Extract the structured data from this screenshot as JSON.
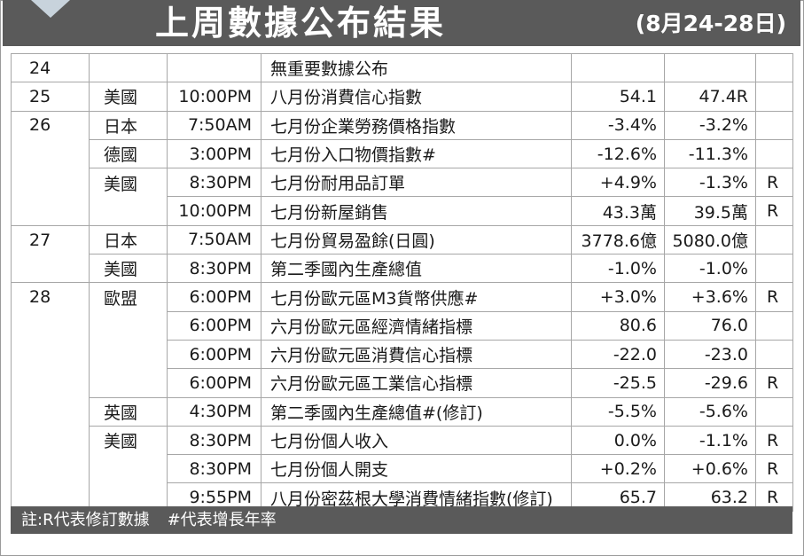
{
  "header": {
    "title": "上周數據公布結果",
    "date_range": "(8月24-28日)"
  },
  "table": {
    "rows": [
      {
        "day": "24",
        "country": "",
        "time": "",
        "item": "無重要數據公布",
        "actual": "",
        "previous": "",
        "revised": ""
      },
      {
        "day": "25",
        "country": "美國",
        "time": "10:00PM",
        "item": "八月份消費信心指數",
        "actual": "54.1",
        "previous": "47.4R",
        "revised": ""
      },
      {
        "day": "26",
        "country": "日本",
        "time": "7:50AM",
        "item": "七月份企業勞務價格指數",
        "actual": "-3.4%",
        "previous": "-3.2%",
        "revised": ""
      },
      {
        "day": "",
        "country": "德國",
        "time": "3:00PM",
        "item": "七月份入口物價指數#",
        "actual": "-12.6%",
        "previous": "-11.3%",
        "revised": ""
      },
      {
        "day": "",
        "country": "美國",
        "time": "8:30PM",
        "item": "七月份耐用品訂單",
        "actual": "+4.9%",
        "previous": "-1.3%",
        "revised": "R"
      },
      {
        "day": "",
        "country": "",
        "time": "10:00PM",
        "item": "七月份新屋銷售",
        "actual": "43.3萬",
        "previous": "39.5萬",
        "revised": "R"
      },
      {
        "day": "27",
        "country": "日本",
        "time": "7:50AM",
        "item": "七月份貿易盈餘(日圓)",
        "actual": "3778.6億",
        "previous": "5080.0億",
        "revised": ""
      },
      {
        "day": "",
        "country": "美國",
        "time": "8:30PM",
        "item": "第二季國內生產總值",
        "actual": "-1.0%",
        "previous": "-1.0%",
        "revised": ""
      },
      {
        "day": "28",
        "country": "歐盟",
        "time": "6:00PM",
        "item": "七月份歐元區M3貨幣供應#",
        "actual": "+3.0%",
        "previous": "+3.6%",
        "revised": "R"
      },
      {
        "day": "",
        "country": "",
        "time": "6:00PM",
        "item": "六月份歐元區經濟情緒指標",
        "actual": "80.6",
        "previous": "76.0",
        "revised": ""
      },
      {
        "day": "",
        "country": "",
        "time": "6:00PM",
        "item": "六月份歐元區消費信心指標",
        "actual": "-22.0",
        "previous": "-23.0",
        "revised": ""
      },
      {
        "day": "",
        "country": "",
        "time": "6:00PM",
        "item": "六月份歐元區工業信心指標",
        "actual": "-25.5",
        "previous": "-29.6",
        "revised": "R"
      },
      {
        "day": "",
        "country": "英國",
        "time": "4:30PM",
        "item": "第二季國內生產總值#(修訂)",
        "actual": "-5.5%",
        "previous": "-5.6%",
        "revised": ""
      },
      {
        "day": "",
        "country": "美國",
        "time": "8:30PM",
        "item": "七月份個人收入",
        "actual": "0.0%",
        "previous": "-1.1%",
        "revised": "R"
      },
      {
        "day": "",
        "country": "",
        "time": "8:30PM",
        "item": "七月份個人開支",
        "actual": "+0.2%",
        "previous": "+0.6%",
        "revised": "R"
      },
      {
        "day": "",
        "country": "",
        "time": "9:55PM",
        "item": "八月份密茲根大學消費情緒指數(修訂)",
        "actual": "65.7",
        "previous": "63.2",
        "revised": "R"
      }
    ]
  },
  "footer": {
    "note_r": "註:R代表修訂數據",
    "note_hash": "#代表增長年率"
  },
  "colors": {
    "header_bg": "#5a5a5a",
    "accent_triangle": "#c8d3dc",
    "grid": "#a7a7a7"
  }
}
